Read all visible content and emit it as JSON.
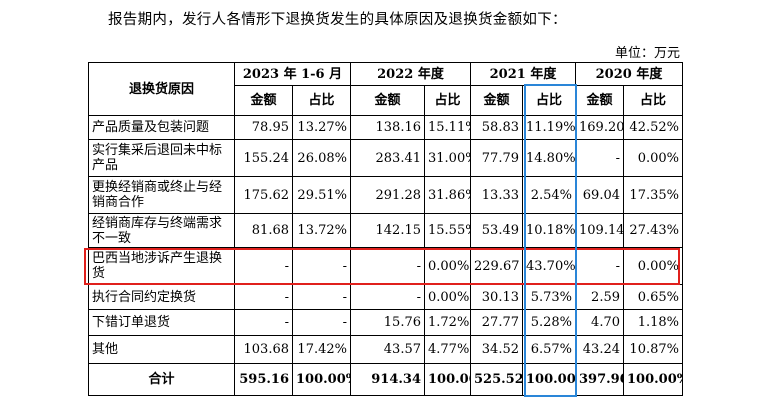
{
  "intro": "报告期内，发行人各情形下退换货发生的具体原因及退换货金额如下：",
  "unit": "单位：万元",
  "table": {
    "reason_header": "退换货原因",
    "periods": [
      "2023 年 1-6 月",
      "2022 年度",
      "2021 年度",
      "2020 年度"
    ],
    "sub_headers": [
      "金额",
      "占比",
      "金额",
      "占比",
      "金额",
      "占比",
      "金额",
      "占比"
    ],
    "rows": [
      {
        "label": "产品质量及包装问题",
        "cells": [
          "78.95",
          "13.27%",
          "138.16",
          "15.11%",
          "58.83",
          "11.19%",
          "169.20",
          "42.52%"
        ]
      },
      {
        "label": "实行集采后退回未中标产品",
        "cells": [
          "155.24",
          "26.08%",
          "283.41",
          "31.00%",
          "77.79",
          "14.80%",
          "-",
          "0.00%"
        ]
      },
      {
        "label": "更换经销商或终止与经销商合作",
        "cells": [
          "175.62",
          "29.51%",
          "291.28",
          "31.86%",
          "13.33",
          "2.54%",
          "69.04",
          "17.35%"
        ]
      },
      {
        "label": "经销商库存与终端需求不一致",
        "cells": [
          "81.68",
          "13.72%",
          "142.15",
          "15.55%",
          "53.49",
          "10.18%",
          "109.14",
          "27.43%"
        ]
      },
      {
        "label": "巴西当地涉诉产生退换货",
        "cells": [
          "-",
          "-",
          "-",
          "0.00%",
          "229.67",
          "43.70%",
          "-",
          "0.00%"
        ]
      },
      {
        "label": "执行合同约定换货",
        "cells": [
          "-",
          "-",
          "-",
          "0.00%",
          "30.13",
          "5.73%",
          "2.59",
          "0.65%"
        ]
      },
      {
        "label": "下错订单退货",
        "cells": [
          "-",
          "-",
          "15.76",
          "1.72%",
          "27.77",
          "5.28%",
          "4.70",
          "1.18%"
        ]
      },
      {
        "label": "其他",
        "cells": [
          "103.68",
          "17.42%",
          "43.57",
          "4.77%",
          "34.52",
          "6.57%",
          "43.24",
          "10.87%"
        ]
      }
    ],
    "total": {
      "label": "合计",
      "cells": [
        "595.16",
        "100.00%",
        "914.34",
        "100.00%",
        "525.52",
        "100.00%",
        "397.90",
        "100.00%"
      ]
    }
  },
  "highlight_colors": {
    "row": "#e0201c",
    "column": "#2a86d8"
  }
}
